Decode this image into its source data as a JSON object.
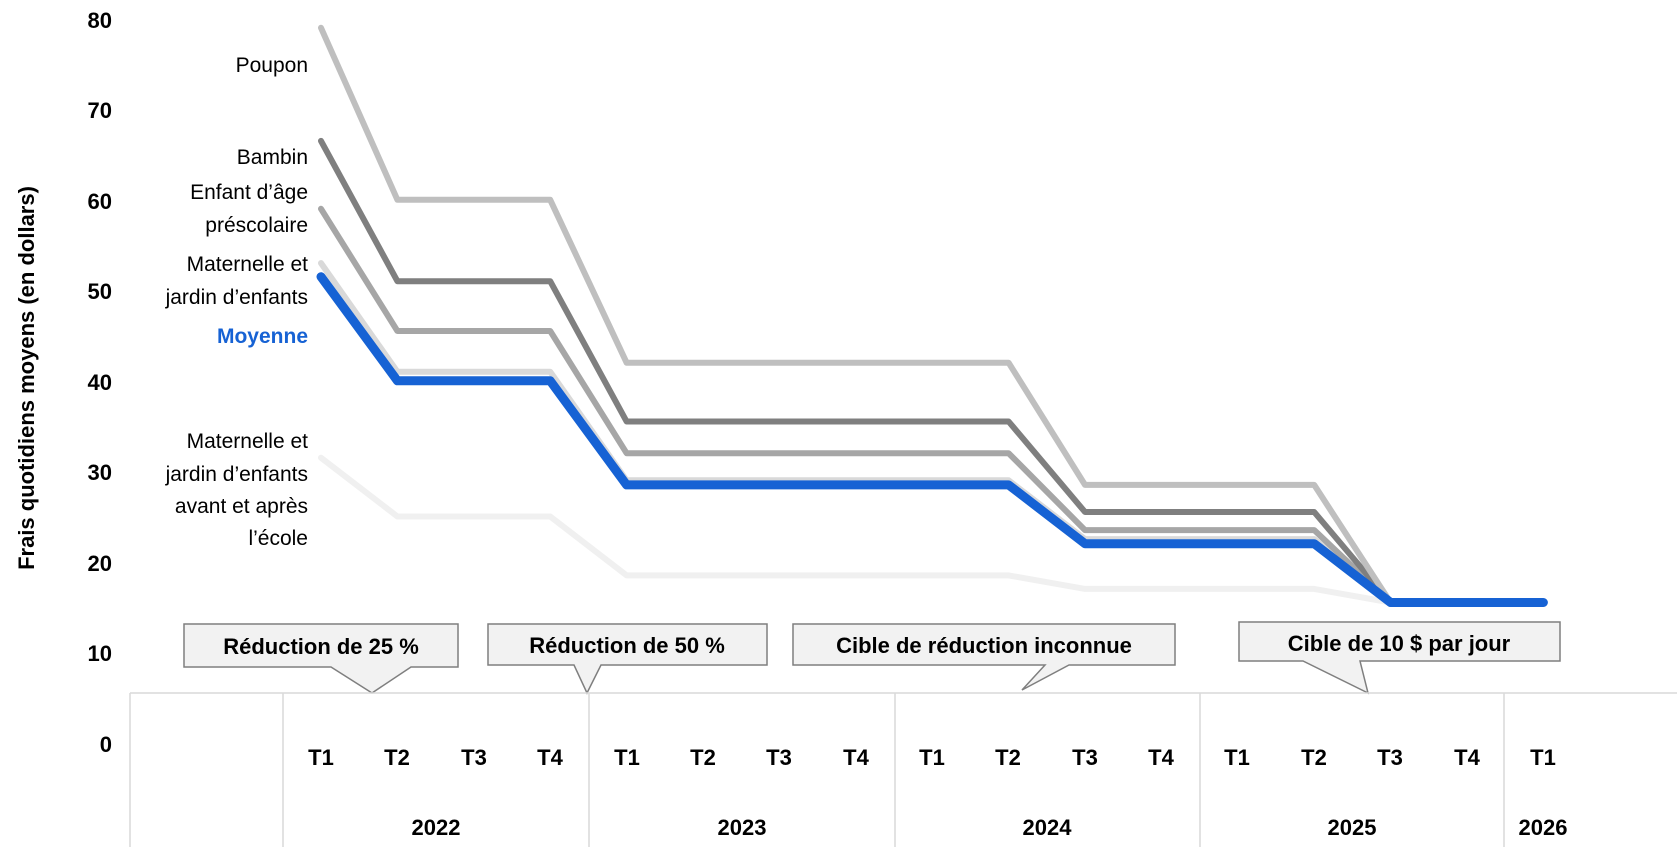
{
  "chart_data": {
    "type": "line",
    "title": "",
    "ylabel": "Frais quotidiens moyens (en dollars)",
    "ylim": [
      0,
      80
    ],
    "yticks": [
      "0",
      "10",
      "20",
      "30",
      "40",
      "50",
      "60",
      "70",
      "80"
    ],
    "quarters": [
      "T1",
      "T2",
      "T3",
      "T4",
      "T1",
      "T2",
      "T3",
      "T4",
      "T1",
      "T2",
      "T3",
      "T4",
      "T1",
      "T2",
      "T3",
      "T4",
      "T1"
    ],
    "years": [
      "2022",
      "2023",
      "2024",
      "2025",
      "2026"
    ],
    "series": [
      {
        "name": "Poupon",
        "color": "#bfbfbf",
        "values": [
          73.5,
          54.5,
          54.5,
          54.5,
          36.5,
          36.5,
          36.5,
          36.5,
          36.5,
          36.5,
          23,
          23,
          23,
          23,
          10,
          10,
          10
        ]
      },
      {
        "name": "Bambin",
        "color": "#7f7f7f",
        "values": [
          61,
          45.5,
          45.5,
          45.5,
          30,
          30,
          30,
          30,
          30,
          30,
          20,
          20,
          20,
          20,
          10,
          10,
          10
        ]
      },
      {
        "name": "Enfant d’âge préscolaire",
        "color": "#a6a6a6",
        "values": [
          53.5,
          40,
          40,
          40,
          26.5,
          26.5,
          26.5,
          26.5,
          26.5,
          26.5,
          18,
          18,
          18,
          18,
          10,
          10,
          10
        ]
      },
      {
        "name": "Maternelle et jardin d’enfants",
        "color": "#d9d9d9",
        "values": [
          47.5,
          35.5,
          35.5,
          35.5,
          23.5,
          23.5,
          23.5,
          23.5,
          23.5,
          23.5,
          17,
          17,
          17,
          17,
          10,
          10,
          10
        ]
      },
      {
        "name": "Moyenne",
        "color": "#1662d4",
        "values": [
          46,
          34.5,
          34.5,
          34.5,
          23,
          23,
          23,
          23,
          23,
          23,
          16.5,
          16.5,
          16.5,
          16.5,
          10,
          10,
          10
        ]
      },
      {
        "name": "Maternelle et jardin d’enfants avant et après l’école",
        "color": "#f0f0f0",
        "values": [
          26,
          19.5,
          19.5,
          19.5,
          13,
          13,
          13,
          13,
          13,
          13,
          11.5,
          11.5,
          11.5,
          11.5,
          10,
          10,
          10
        ]
      }
    ],
    "series_labels": {
      "poupon": [
        "Poupon"
      ],
      "bambin": [
        "Bambin"
      ],
      "prescolaire": [
        "Enfant d’âge",
        "préscolaire"
      ],
      "maternelle": [
        "Maternelle et",
        "jardin d’enfants"
      ],
      "moyenne": [
        "Moyenne"
      ],
      "avant_apres": [
        "Maternelle et",
        "jardin d’enfants",
        "avant et après",
        "l’école"
      ]
    },
    "annotations": [
      "Réduction de 25 %",
      "Réduction de 50 %",
      "Cible de réduction inconnue",
      "Cible de 10 $ par jour"
    ],
    "grid": false,
    "legend": "none"
  }
}
